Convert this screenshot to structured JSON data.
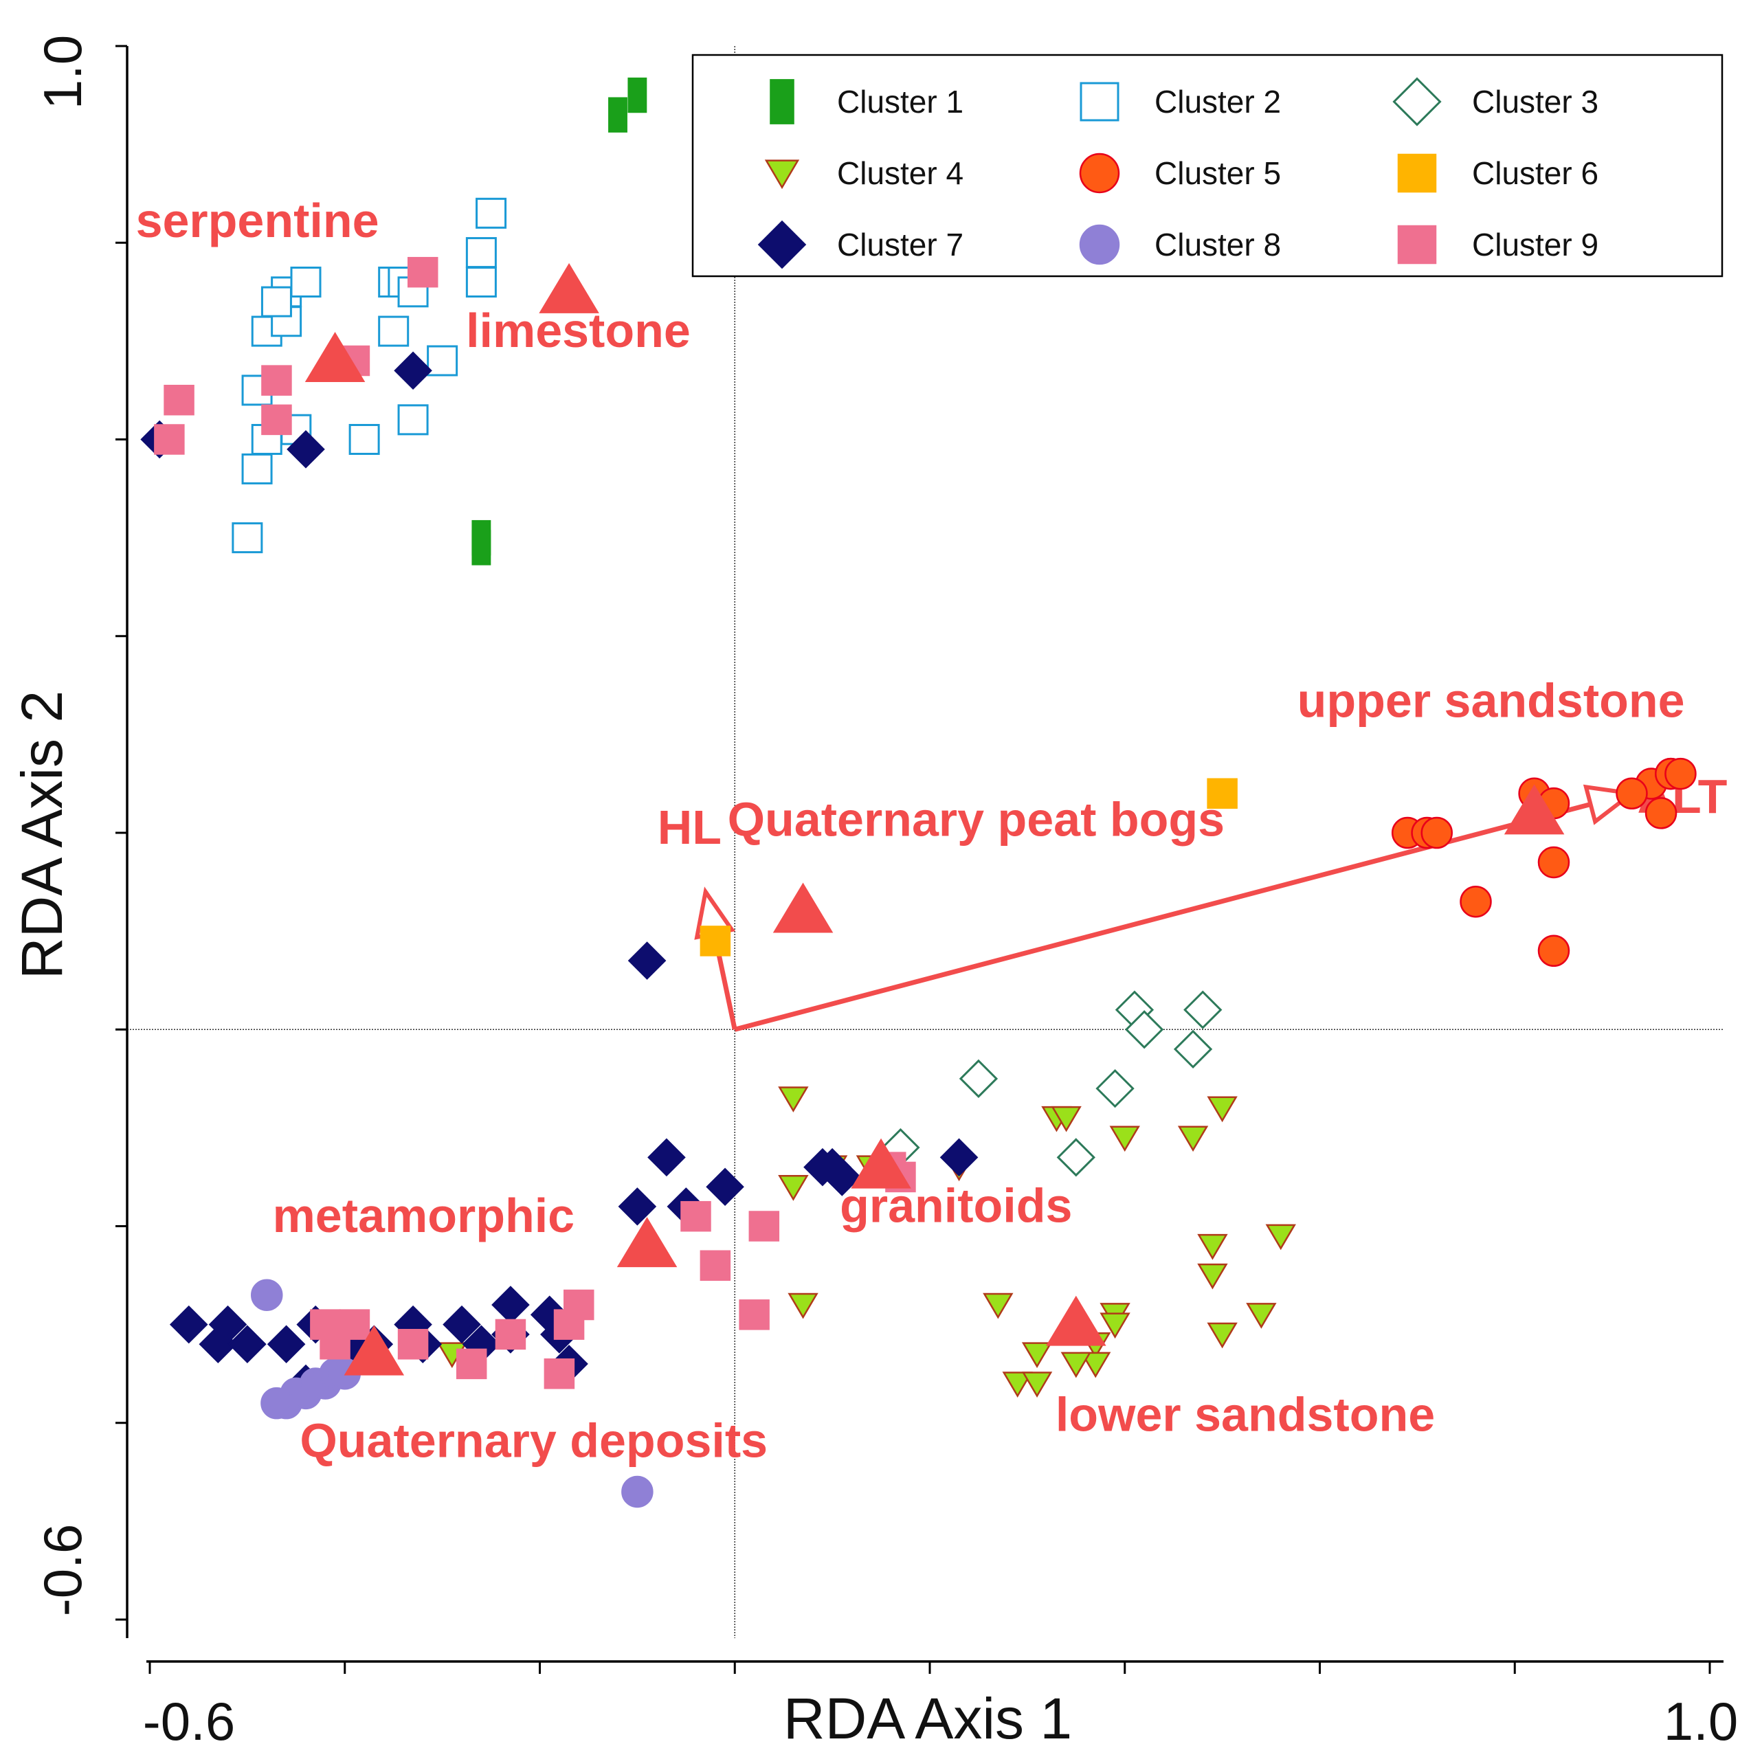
{
  "chart_data": {
    "type": "scatter",
    "xlabel": "RDA Axis 1",
    "ylabel": "RDA Axis 2",
    "xlim": [
      -0.62,
      1.0
    ],
    "ylim": [
      -0.6,
      1.0
    ],
    "x_tick_labels": [
      "-0.6",
      "1.0"
    ],
    "y_tick_labels": [
      "1.0",
      "-0.6"
    ],
    "legend_position": "top-right",
    "series": [
      {
        "name": "Cluster 1",
        "marker": "rect-tall",
        "color": "#1aa01a",
        "filled": true,
        "points": [
          [
            -0.12,
            0.93
          ],
          [
            -0.1,
            0.95
          ],
          [
            -0.26,
            0.49
          ],
          [
            -0.26,
            0.5
          ]
        ]
      },
      {
        "name": "Cluster 2",
        "marker": "square",
        "color": "#1a9ad6",
        "filled": false,
        "points": [
          [
            -0.49,
            0.65
          ],
          [
            -0.45,
            0.61
          ],
          [
            -0.48,
            0.6
          ],
          [
            -0.48,
            0.71
          ],
          [
            -0.46,
            0.72
          ],
          [
            -0.46,
            0.75
          ],
          [
            -0.47,
            0.74
          ],
          [
            -0.44,
            0.76
          ],
          [
            -0.35,
            0.76
          ],
          [
            -0.34,
            0.76
          ],
          [
            -0.33,
            0.75
          ],
          [
            -0.35,
            0.71
          ],
          [
            -0.33,
            0.62
          ],
          [
            -0.38,
            0.6
          ],
          [
            -0.3,
            0.68
          ],
          [
            -0.26,
            0.79
          ],
          [
            -0.26,
            0.76
          ],
          [
            -0.25,
            0.83
          ],
          [
            -0.49,
            0.57
          ],
          [
            -0.5,
            0.5
          ]
        ]
      },
      {
        "name": "Cluster 3",
        "marker": "diamond",
        "color": "#2d7a5a",
        "filled": false,
        "points": [
          [
            0.41,
            0.02
          ],
          [
            0.42,
            0.0
          ],
          [
            0.48,
            0.02
          ],
          [
            0.47,
            -0.02
          ],
          [
            0.25,
            -0.05
          ],
          [
            0.39,
            -0.06
          ],
          [
            0.17,
            -0.12
          ],
          [
            0.35,
            -0.13
          ]
        ]
      },
      {
        "name": "Cluster 4",
        "marker": "triangle-down",
        "color": "#9be01a",
        "filled": true,
        "points": [
          [
            0.06,
            -0.07
          ],
          [
            0.33,
            -0.09
          ],
          [
            0.34,
            -0.09
          ],
          [
            0.5,
            -0.08
          ],
          [
            0.4,
            -0.11
          ],
          [
            0.47,
            -0.11
          ],
          [
            0.06,
            -0.16
          ],
          [
            0.1,
            -0.14
          ],
          [
            0.14,
            -0.14
          ],
          [
            0.16,
            -0.14
          ],
          [
            0.23,
            -0.14
          ],
          [
            0.49,
            -0.22
          ],
          [
            0.56,
            -0.21
          ],
          [
            0.49,
            -0.25
          ],
          [
            0.27,
            -0.28
          ],
          [
            0.07,
            -0.28
          ],
          [
            0.39,
            -0.29
          ],
          [
            0.39,
            -0.3
          ],
          [
            0.54,
            -0.29
          ],
          [
            0.5,
            -0.31
          ],
          [
            0.31,
            -0.33
          ],
          [
            0.37,
            -0.32
          ],
          [
            0.37,
            -0.34
          ],
          [
            0.29,
            -0.36
          ],
          [
            0.31,
            -0.36
          ],
          [
            0.35,
            -0.34
          ],
          [
            -0.29,
            -0.33
          ]
        ]
      },
      {
        "name": "Cluster 5",
        "marker": "circle",
        "color": "#ff5a14",
        "filled": true,
        "points": [
          [
            0.94,
            0.25
          ],
          [
            0.96,
            0.26
          ],
          [
            0.96,
            0.26
          ],
          [
            0.97,
            0.26
          ],
          [
            0.82,
            0.24
          ],
          [
            0.84,
            0.23
          ],
          [
            0.92,
            0.24
          ],
          [
            0.95,
            0.22
          ],
          [
            0.69,
            0.2
          ],
          [
            0.71,
            0.2
          ],
          [
            0.72,
            0.2
          ],
          [
            0.84,
            0.17
          ],
          [
            0.76,
            0.13
          ],
          [
            0.84,
            0.08
          ]
        ]
      },
      {
        "name": "Cluster 6",
        "marker": "square",
        "color": "#ffb400",
        "filled": true,
        "points": [
          [
            0.5,
            0.24
          ],
          [
            -0.02,
            0.09
          ]
        ]
      },
      {
        "name": "Cluster 7",
        "marker": "diamond",
        "color": "#0d0d6e",
        "filled": true,
        "points": [
          [
            -0.59,
            0.6
          ],
          [
            -0.44,
            0.59
          ],
          [
            -0.33,
            0.67
          ],
          [
            -0.09,
            0.07
          ],
          [
            -0.07,
            -0.13
          ],
          [
            -0.01,
            -0.16
          ],
          [
            -0.1,
            -0.18
          ],
          [
            -0.05,
            -0.18
          ],
          [
            0.09,
            -0.14
          ],
          [
            0.11,
            -0.15
          ],
          [
            0.1,
            -0.14
          ],
          [
            0.23,
            -0.13
          ],
          [
            -0.56,
            -0.3
          ],
          [
            -0.53,
            -0.32
          ],
          [
            -0.52,
            -0.3
          ],
          [
            -0.5,
            -0.32
          ],
          [
            -0.46,
            -0.32
          ],
          [
            -0.43,
            -0.3
          ],
          [
            -0.37,
            -0.32
          ],
          [
            -0.33,
            -0.3
          ],
          [
            -0.32,
            -0.32
          ],
          [
            -0.28,
            -0.3
          ],
          [
            -0.26,
            -0.32
          ],
          [
            -0.23,
            -0.28
          ],
          [
            -0.23,
            -0.31
          ],
          [
            -0.19,
            -0.29
          ],
          [
            -0.18,
            -0.31
          ],
          [
            -0.17,
            -0.34
          ],
          [
            -0.39,
            -0.33
          ],
          [
            -0.44,
            -0.36
          ]
        ]
      },
      {
        "name": "Cluster 8",
        "marker": "circle",
        "color": "#8f80d6",
        "filled": true,
        "points": [
          [
            -0.48,
            -0.27
          ],
          [
            -0.47,
            -0.38
          ],
          [
            -0.46,
            -0.38
          ],
          [
            -0.45,
            -0.37
          ],
          [
            -0.44,
            -0.37
          ],
          [
            -0.43,
            -0.36
          ],
          [
            -0.42,
            -0.36
          ],
          [
            -0.41,
            -0.35
          ],
          [
            -0.4,
            -0.35
          ],
          [
            -0.1,
            -0.47
          ]
        ]
      },
      {
        "name": "Cluster 9",
        "marker": "square",
        "color": "#ef7090",
        "filled": true,
        "points": [
          [
            -0.57,
            0.64
          ],
          [
            -0.58,
            0.6
          ],
          [
            -0.47,
            0.66
          ],
          [
            -0.47,
            0.62
          ],
          [
            -0.32,
            0.77
          ],
          [
            -0.39,
            0.68
          ],
          [
            0.16,
            -0.14
          ],
          [
            0.17,
            -0.15
          ],
          [
            -0.04,
            -0.19
          ],
          [
            -0.02,
            -0.24
          ],
          [
            0.03,
            -0.2
          ],
          [
            0.02,
            -0.29
          ],
          [
            -0.42,
            -0.3
          ],
          [
            -0.39,
            -0.3
          ],
          [
            -0.41,
            -0.32
          ],
          [
            -0.33,
            -0.32
          ],
          [
            -0.23,
            -0.31
          ],
          [
            -0.17,
            -0.3
          ],
          [
            -0.16,
            -0.28
          ],
          [
            -0.27,
            -0.34
          ],
          [
            -0.18,
            -0.35
          ]
        ]
      }
    ],
    "centroids": [
      {
        "label": "serpentine",
        "point": [
          -0.41,
          0.68
        ]
      },
      {
        "label": "limestone",
        "point": [
          -0.17,
          0.75
        ]
      },
      {
        "label": "upper sandstone",
        "point": [
          0.82,
          0.22
        ]
      },
      {
        "label": "Quaternary peat bogs",
        "point": [
          0.07,
          0.12
        ]
      },
      {
        "label": "metamorphic",
        "point": [
          -0.09,
          -0.22
        ]
      },
      {
        "label": "granitoids",
        "point": [
          0.15,
          -0.14
        ]
      },
      {
        "label": "lower sandstone",
        "point": [
          0.35,
          -0.3
        ]
      },
      {
        "label": "Quaternary deposits",
        "point": [
          -0.37,
          -0.33
        ]
      }
    ],
    "vectors": [
      {
        "label": "ALT",
        "x": 0.92,
        "y": 0.24
      },
      {
        "label": "HL",
        "x": -0.03,
        "y": 0.14
      }
    ],
    "env_color": "#f24c4c"
  }
}
